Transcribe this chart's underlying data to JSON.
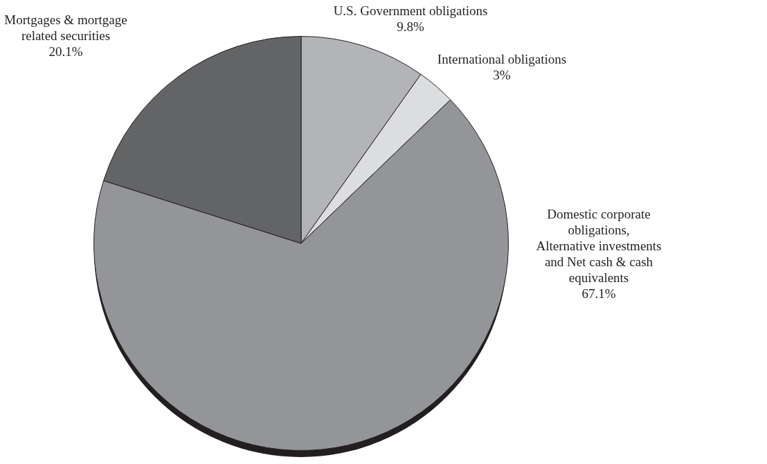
{
  "chart_data": {
    "type": "pie",
    "categories": [
      "U.S. Government obligations",
      "International obligations",
      "Domestic corporate obligations,\nAlternative investments\nand Net cash & cash equivalents",
      "Mortgages & mortgage\nrelated securities"
    ],
    "values": [
      9.8,
      3,
      67.1,
      20.1
    ],
    "value_labels": [
      "9.8%",
      "3%",
      "67.1%",
      "20.1%"
    ],
    "colors": [
      "#b3b4b8",
      "#dcdddf",
      "#939598",
      "#636466"
    ],
    "legend": false
  }
}
